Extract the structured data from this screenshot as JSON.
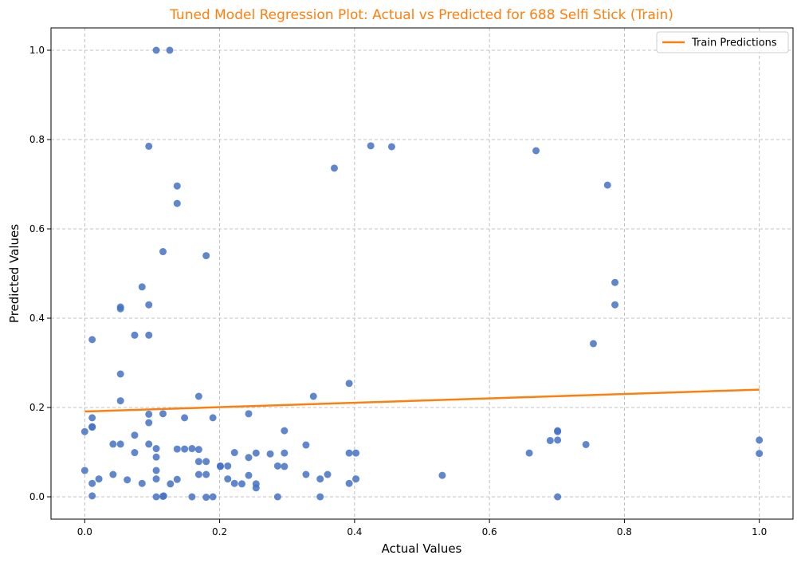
{
  "chart_data": {
    "type": "scatter",
    "title": "Tuned Model Regression Plot: Actual vs Predicted for 688 Selfi Stick (Train)",
    "xlabel": "Actual Values",
    "ylabel": "Predicted Values",
    "xlim": [
      -0.05,
      1.05
    ],
    "ylim": [
      -0.05,
      1.05
    ],
    "xticks": [
      0.0,
      0.2,
      0.4,
      0.6,
      0.8,
      1.0
    ],
    "yticks": [
      0.0,
      0.2,
      0.4,
      0.6,
      0.8,
      1.0
    ],
    "xtick_labels": [
      "0.0",
      "0.2",
      "0.4",
      "0.6",
      "0.8",
      "1.0"
    ],
    "ytick_labels": [
      "0.0",
      "0.2",
      "0.4",
      "0.6",
      "0.8",
      "1.0"
    ],
    "grid": true,
    "legend": {
      "position": "top-right",
      "entries": [
        "Train Predictions"
      ]
    },
    "colors": {
      "points": "#4472c4",
      "line": "#ff7f0e",
      "title": "#ff7f0e"
    },
    "points": [
      {
        "x": 0.106,
        "y": 1.0
      },
      {
        "x": 0.126,
        "y": 1.0
      },
      {
        "x": 0.095,
        "y": 0.785
      },
      {
        "x": 0.137,
        "y": 0.696
      },
      {
        "x": 0.137,
        "y": 0.657
      },
      {
        "x": 0.116,
        "y": 0.549
      },
      {
        "x": 0.18,
        "y": 0.54
      },
      {
        "x": 0.085,
        "y": 0.47
      },
      {
        "x": 0.053,
        "y": 0.425
      },
      {
        "x": 0.053,
        "y": 0.421
      },
      {
        "x": 0.095,
        "y": 0.43
      },
      {
        "x": 0.074,
        "y": 0.362
      },
      {
        "x": 0.095,
        "y": 0.362
      },
      {
        "x": 0.011,
        "y": 0.352
      },
      {
        "x": 0.053,
        "y": 0.275
      },
      {
        "x": 0.053,
        "y": 0.215
      },
      {
        "x": 0.169,
        "y": 0.225
      },
      {
        "x": 0.095,
        "y": 0.185
      },
      {
        "x": 0.116,
        "y": 0.186
      },
      {
        "x": 0.148,
        "y": 0.177
      },
      {
        "x": 0.19,
        "y": 0.177
      },
      {
        "x": 0.011,
        "y": 0.177
      },
      {
        "x": 0.011,
        "y": 0.157
      },
      {
        "x": 0.011,
        "y": 0.156
      },
      {
        "x": 0.095,
        "y": 0.166
      },
      {
        "x": 0.0,
        "y": 0.146
      },
      {
        "x": 0.074,
        "y": 0.138
      },
      {
        "x": 0.042,
        "y": 0.118
      },
      {
        "x": 0.053,
        "y": 0.118
      },
      {
        "x": 0.095,
        "y": 0.118
      },
      {
        "x": 0.106,
        "y": 0.108
      },
      {
        "x": 0.137,
        "y": 0.107
      },
      {
        "x": 0.148,
        "y": 0.107
      },
      {
        "x": 0.159,
        "y": 0.108
      },
      {
        "x": 0.169,
        "y": 0.106
      },
      {
        "x": 0.074,
        "y": 0.099
      },
      {
        "x": 0.106,
        "y": 0.089
      },
      {
        "x": 0.169,
        "y": 0.079
      },
      {
        "x": 0.18,
        "y": 0.079
      },
      {
        "x": 0.201,
        "y": 0.069
      },
      {
        "x": 0.201,
        "y": 0.068
      },
      {
        "x": 0.212,
        "y": 0.069
      },
      {
        "x": 0.222,
        "y": 0.099
      },
      {
        "x": 0.243,
        "y": 0.088
      },
      {
        "x": 0.254,
        "y": 0.098
      },
      {
        "x": 0.275,
        "y": 0.096
      },
      {
        "x": 0.296,
        "y": 0.098
      },
      {
        "x": 0.296,
        "y": 0.148
      },
      {
        "x": 0.328,
        "y": 0.116
      },
      {
        "x": 0.286,
        "y": 0.069
      },
      {
        "x": 0.296,
        "y": 0.068
      },
      {
        "x": 0.243,
        "y": 0.186
      },
      {
        "x": 0.339,
        "y": 0.225
      },
      {
        "x": 0.392,
        "y": 0.254
      },
      {
        "x": 0.0,
        "y": 0.059
      },
      {
        "x": 0.042,
        "y": 0.05
      },
      {
        "x": 0.106,
        "y": 0.059
      },
      {
        "x": 0.021,
        "y": 0.04
      },
      {
        "x": 0.011,
        "y": 0.03
      },
      {
        "x": 0.063,
        "y": 0.038
      },
      {
        "x": 0.085,
        "y": 0.03
      },
      {
        "x": 0.106,
        "y": 0.04
      },
      {
        "x": 0.127,
        "y": 0.029
      },
      {
        "x": 0.137,
        "y": 0.039
      },
      {
        "x": 0.169,
        "y": 0.05
      },
      {
        "x": 0.18,
        "y": 0.05
      },
      {
        "x": 0.212,
        "y": 0.04
      },
      {
        "x": 0.222,
        "y": 0.03
      },
      {
        "x": 0.233,
        "y": 0.029
      },
      {
        "x": 0.243,
        "y": 0.048
      },
      {
        "x": 0.254,
        "y": 0.029
      },
      {
        "x": 0.254,
        "y": 0.02
      },
      {
        "x": 0.328,
        "y": 0.05
      },
      {
        "x": 0.349,
        "y": 0.04
      },
      {
        "x": 0.36,
        "y": 0.05
      },
      {
        "x": 0.392,
        "y": 0.098
      },
      {
        "x": 0.402,
        "y": 0.098
      },
      {
        "x": 0.392,
        "y": 0.03
      },
      {
        "x": 0.402,
        "y": 0.04
      },
      {
        "x": 0.011,
        "y": 0.002
      },
      {
        "x": 0.106,
        "y": 0.0
      },
      {
        "x": 0.116,
        "y": 0.001
      },
      {
        "x": 0.117,
        "y": 0.002
      },
      {
        "x": 0.159,
        "y": 0.0
      },
      {
        "x": 0.18,
        "y": -0.001
      },
      {
        "x": 0.19,
        "y": 0.0
      },
      {
        "x": 0.286,
        "y": 0.0
      },
      {
        "x": 0.349,
        "y": 0.0
      },
      {
        "x": 0.37,
        "y": 0.736
      },
      {
        "x": 0.424,
        "y": 0.786
      },
      {
        "x": 0.455,
        "y": 0.784
      },
      {
        "x": 0.53,
        "y": 0.048
      },
      {
        "x": 0.669,
        "y": 0.775
      },
      {
        "x": 0.775,
        "y": 0.698
      },
      {
        "x": 0.786,
        "y": 0.48
      },
      {
        "x": 0.786,
        "y": 0.43
      },
      {
        "x": 0.754,
        "y": 0.343
      },
      {
        "x": 0.659,
        "y": 0.098
      },
      {
        "x": 0.69,
        "y": 0.126
      },
      {
        "x": 0.701,
        "y": 0.148
      },
      {
        "x": 0.701,
        "y": 0.146
      },
      {
        "x": 0.701,
        "y": 0.127
      },
      {
        "x": 0.743,
        "y": 0.117
      },
      {
        "x": 0.701,
        "y": 0.0
      },
      {
        "x": 1.0,
        "y": 0.127
      },
      {
        "x": 1.0,
        "y": 0.097
      }
    ],
    "line": {
      "name": "Train Predictions",
      "x": [
        0.0,
        1.0
      ],
      "y": [
        0.191,
        0.24
      ]
    }
  }
}
